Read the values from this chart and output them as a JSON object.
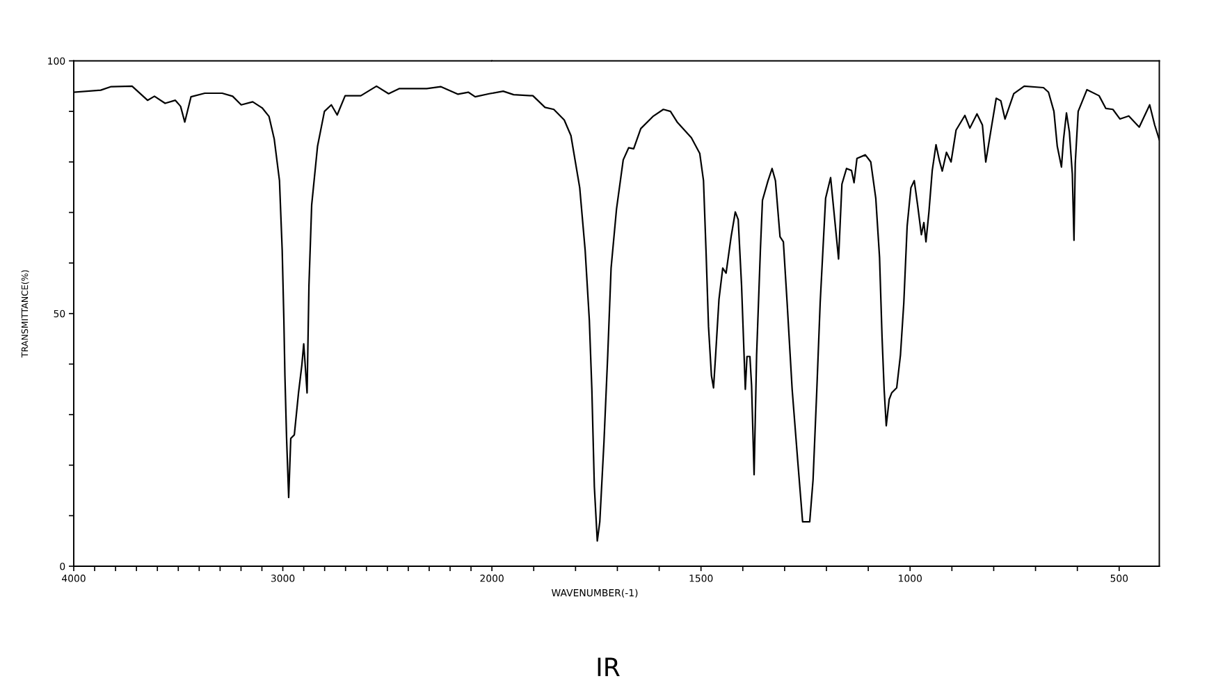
{
  "chart_data": [
    {
      "type": "line",
      "ylabel": "TRANSMITTANCE(%)",
      "annotations": [
        "IR"
      ],
      "series": [
        {
          "color": "#000000",
          "x": [
            4000,
            3871,
            3821,
            3721,
            3647,
            3614,
            3563,
            3514,
            3489,
            3469,
            3439,
            3373,
            3290,
            3240,
            3199,
            3144,
            3099,
            3066,
            3041,
            3016,
            3003,
            2995,
            2990,
            2982,
            2972,
            2962,
            2945,
            2925,
            2909,
            2900,
            2892,
            2884,
            2875,
            2862,
            2834,
            2801,
            2768,
            2740,
            2702,
            2627,
            2552,
            2494,
            2444,
            2312,
            2245,
            2162,
            2113,
            2080,
            2013,
            2000
          ],
          "values": [
            93.8,
            94.2,
            94.9,
            95.0,
            92.2,
            93.0,
            91.6,
            92.2,
            91.0,
            87.9,
            92.9,
            93.6,
            93.6,
            93.0,
            91.3,
            91.9,
            90.7,
            89.0,
            84.5,
            76.3,
            62.5,
            48.7,
            37.7,
            25.3,
            13.6,
            25.3,
            26.0,
            34.3,
            39.8,
            44.0,
            39.2,
            34.3,
            55.6,
            71.5,
            83.1,
            90.0,
            91.3,
            89.3,
            93.1,
            93.1,
            95.0,
            93.5,
            94.5,
            94.5,
            94.9,
            93.4,
            93.8,
            92.9,
            93.5,
            93.6
          ]
        }
      ],
      "xlim": [
        4000,
        2000
      ],
      "ylim": [
        0,
        100
      ],
      "xticks": [
        4000,
        {
          "value": 3900,
          "label": null
        },
        {
          "value": 3800,
          "label": null
        },
        {
          "value": 3700,
          "label": null
        },
        {
          "value": 3600,
          "label": null
        },
        {
          "value": 3500,
          "label": null
        },
        {
          "value": 3400,
          "label": null
        },
        {
          "value": 3300,
          "label": null
        },
        {
          "value": 3200,
          "label": null
        },
        {
          "value": 3100,
          "label": null
        },
        3000,
        {
          "value": 2900,
          "label": null
        },
        {
          "value": 2800,
          "label": null
        },
        {
          "value": 2700,
          "label": null
        },
        {
          "value": 2600,
          "label": null
        },
        {
          "value": 2500,
          "label": null
        },
        {
          "value": 2400,
          "label": null
        },
        {
          "value": 2300,
          "label": null
        },
        {
          "value": 2200,
          "label": null
        },
        {
          "value": 2100,
          "label": null
        }
      ],
      "yticks": [
        0,
        {
          "value": 10,
          "label": null
        },
        {
          "value": 20,
          "label": null
        },
        {
          "value": 30,
          "label": null
        },
        {
          "value": 40,
          "label": null
        },
        50,
        {
          "value": 60,
          "label": null
        },
        {
          "value": 70,
          "label": null
        },
        {
          "value": 80,
          "label": null
        },
        {
          "value": 90,
          "label": null
        },
        100
      ]
    },
    {
      "type": "line",
      "xlabel": "WAVENUMBER(-1)",
      "tick_labels": "x",
      "series": [
        {
          "color": "#000000",
          "x": [
            2000,
            1973,
            1948,
            1902,
            1873,
            1852,
            1827,
            1811,
            1790,
            1777,
            1767,
            1761,
            1755,
            1748,
            1742,
            1732,
            1723,
            1715,
            1702,
            1686,
            1673,
            1661,
            1644,
            1615,
            1590,
            1573,
            1557,
            1523,
            1503,
            1494,
            1488,
            1482,
            1475,
            1470,
            1465,
            1457,
            1448,
            1440,
            1428,
            1418,
            1411,
            1403,
            1394,
            1390,
            1383,
            1379,
            1373,
            1367,
            1358,
            1353,
            1340,
            1330,
            1322,
            1311,
            1303,
            1294,
            1282,
            1269,
            1257,
            1240,
            1232,
            1223,
            1215,
            1202,
            1190,
            1171,
            1163,
            1152,
            1140,
            1134,
            1127,
            1107,
            1094,
            1082,
            1073,
            1067,
            1062,
            1057,
            1050,
            1044,
            1032,
            1023,
            1015,
            1007,
            998,
            990,
            982,
            973,
            967,
            962,
            955,
            947,
            938,
            930,
            923,
            913,
            902,
            890,
            869,
            857,
            840,
            827,
            819,
            806,
            794,
            783,
            773,
            752,
            727,
            681,
            669,
            656,
            648,
            638,
            633,
            626,
            619,
            612,
            608,
            605,
            598,
            577,
            548,
            532,
            515,
            498,
            477,
            452,
            427,
            415,
            404
          ],
          "values": [
            93.6,
            94.0,
            93.3,
            93.1,
            90.8,
            90.4,
            88.3,
            85.2,
            74.9,
            62.5,
            48.7,
            35.0,
            15.7,
            5.0,
            8.8,
            24.6,
            41.8,
            59.0,
            70.7,
            80.4,
            82.8,
            82.6,
            86.6,
            89.0,
            90.4,
            90.0,
            87.9,
            84.8,
            81.7,
            76.3,
            62.5,
            47.4,
            37.7,
            35.3,
            41.8,
            52.8,
            59.0,
            58.0,
            65.2,
            70.1,
            68.6,
            55.6,
            35.0,
            41.5,
            41.5,
            35.7,
            18.1,
            41.8,
            62.5,
            72.4,
            76.2,
            78.7,
            76.3,
            65.2,
            64.2,
            52.1,
            35.0,
            21.2,
            8.8,
            8.8,
            17.1,
            35.0,
            52.1,
            72.8,
            76.9,
            60.8,
            75.6,
            78.7,
            78.3,
            75.9,
            80.7,
            81.4,
            80.0,
            72.8,
            61.1,
            45.3,
            35.0,
            27.8,
            33.0,
            34.3,
            35.3,
            41.8,
            52.1,
            67.3,
            74.9,
            76.3,
            71.5,
            65.6,
            68.0,
            64.2,
            70.0,
            78.3,
            83.4,
            80.3,
            78.2,
            81.9,
            80.0,
            86.3,
            89.2,
            86.7,
            89.5,
            87.3,
            80.0,
            86.6,
            92.6,
            92.1,
            88.5,
            93.5,
            95.0,
            94.7,
            93.8,
            90.0,
            83.1,
            79.0,
            84.5,
            89.7,
            85.9,
            77.6,
            64.5,
            79.7,
            90.0,
            94.3,
            93.1,
            90.6,
            90.4,
            88.5,
            89.1,
            86.9,
            91.3,
            87.3,
            84.4
          ]
        }
      ],
      "xlim": [
        2000,
        404
      ],
      "ylim": [
        0,
        100
      ],
      "xticks": [
        2000,
        {
          "value": 1900,
          "label": null
        },
        {
          "value": 1800,
          "label": null
        },
        {
          "value": 1700,
          "label": null
        },
        {
          "value": 1600,
          "label": null
        },
        1500,
        {
          "value": 1400,
          "label": null
        },
        {
          "value": 1300,
          "label": null
        },
        {
          "value": 1200,
          "label": null
        },
        {
          "value": 1100,
          "label": null
        },
        1000,
        {
          "value": 900,
          "label": null
        },
        {
          "value": 800,
          "label": null
        },
        {
          "value": 700,
          "label": null
        },
        {
          "value": 600,
          "label": null
        },
        500
      ]
    }
  ]
}
